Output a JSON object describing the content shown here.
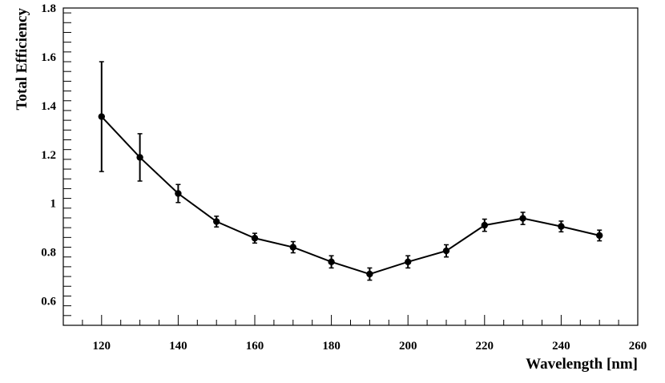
{
  "chart_data": {
    "type": "line",
    "xlabel": "Wavelength [nm]",
    "ylabel": "Total Efficiency",
    "xlim": [
      110,
      260
    ],
    "ylim": [
      0.5,
      1.8
    ],
    "x_ticks": [
      120,
      140,
      160,
      180,
      200,
      220,
      240,
      260
    ],
    "y_ticks": [
      0.6,
      0.8,
      1,
      1.2,
      1.4,
      1.6,
      1.8
    ],
    "y_tick_labels": [
      "0.6",
      "0.8",
      "1",
      "1.2",
      "1.4",
      "1.6",
      "1.8"
    ],
    "grid": false,
    "legend": "none",
    "series": [
      {
        "x": [
          120,
          130,
          140,
          150,
          160,
          170,
          180,
          190,
          200,
          210,
          220,
          230,
          240,
          250
        ],
        "y": [
          1.355,
          1.188,
          1.04,
          0.925,
          0.857,
          0.82,
          0.76,
          0.71,
          0.76,
          0.805,
          0.91,
          0.938,
          0.905,
          0.868
        ],
        "yerr": [
          0.225,
          0.097,
          0.037,
          0.022,
          0.02,
          0.023,
          0.025,
          0.025,
          0.025,
          0.025,
          0.025,
          0.025,
          0.022,
          0.022
        ],
        "color": "#000000"
      }
    ]
  }
}
